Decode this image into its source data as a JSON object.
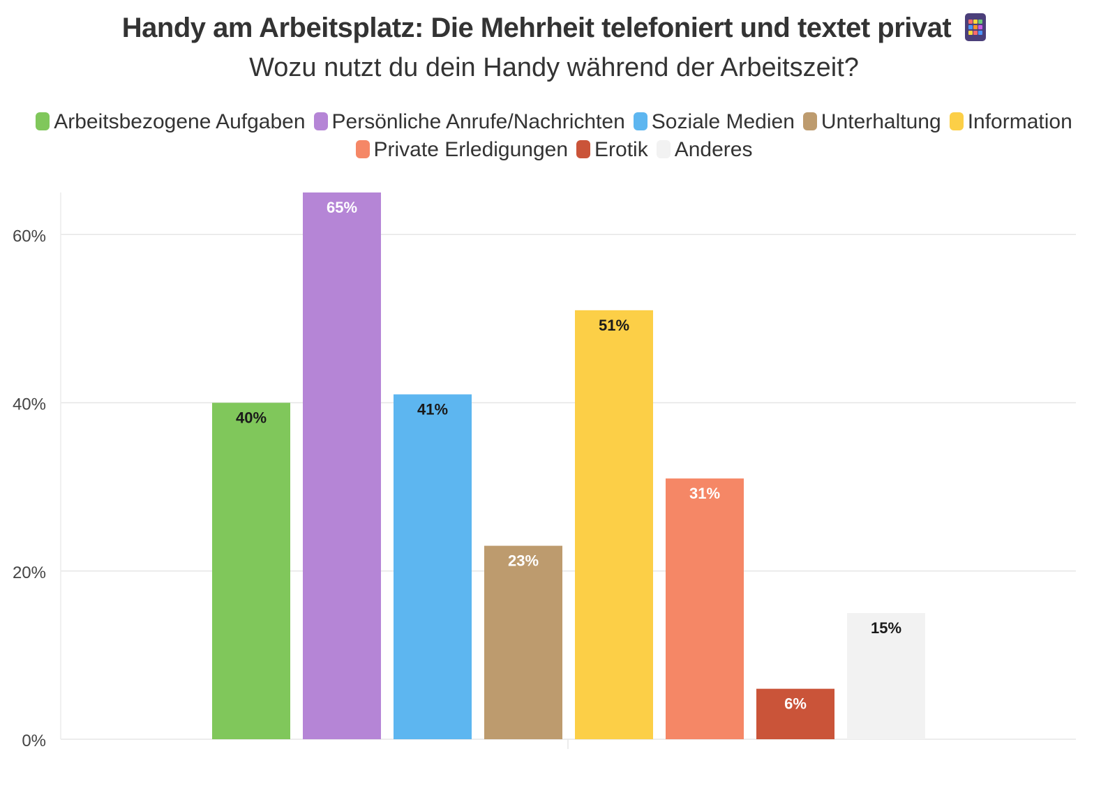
{
  "chart_data": {
    "type": "bar",
    "title": "Handy am Arbeitsplatz: Die Mehrheit telefoniert und textet privat",
    "title_icon": "mobile-phone-icon",
    "subtitle": "Wozu nutzt du dein Handy während der Arbeitszeit?",
    "legend_position": "top-center",
    "grid": true,
    "ylim": [
      0,
      65
    ],
    "yticks": [
      0,
      20,
      40,
      60
    ],
    "ytick_labels": [
      "0%",
      "20%",
      "40%",
      "60%"
    ],
    "series": [
      {
        "name": "Arbeitsbezogene Aufgaben",
        "value": 40,
        "label": "40%",
        "color": "#80c75b",
        "label_color": "#1a1a1a"
      },
      {
        "name": "Persönliche Anrufe/Nachrichten",
        "value": 65,
        "label": "65%",
        "color": "#b585d6",
        "label_color": "#ffffff"
      },
      {
        "name": "Soziale Medien",
        "value": 41,
        "label": "41%",
        "color": "#5db6f0",
        "label_color": "#1a1a1a"
      },
      {
        "name": "Unterhaltung",
        "value": 23,
        "label": "23%",
        "color": "#bd9b6e",
        "label_color": "#ffffff"
      },
      {
        "name": "Information",
        "value": 51,
        "label": "51%",
        "color": "#fccf47",
        "label_color": "#1a1a1a"
      },
      {
        "name": "Private Erledigungen",
        "value": 31,
        "label": "31%",
        "color": "#f58766",
        "label_color": "#ffffff"
      },
      {
        "name": "Erotik",
        "value": 6,
        "label": "6%",
        "color": "#ca5439",
        "label_color": "#ffffff"
      },
      {
        "name": "Anderes",
        "value": 15,
        "label": "15%",
        "color": "#f2f2f2",
        "label_color": "#1a1a1a"
      }
    ]
  }
}
